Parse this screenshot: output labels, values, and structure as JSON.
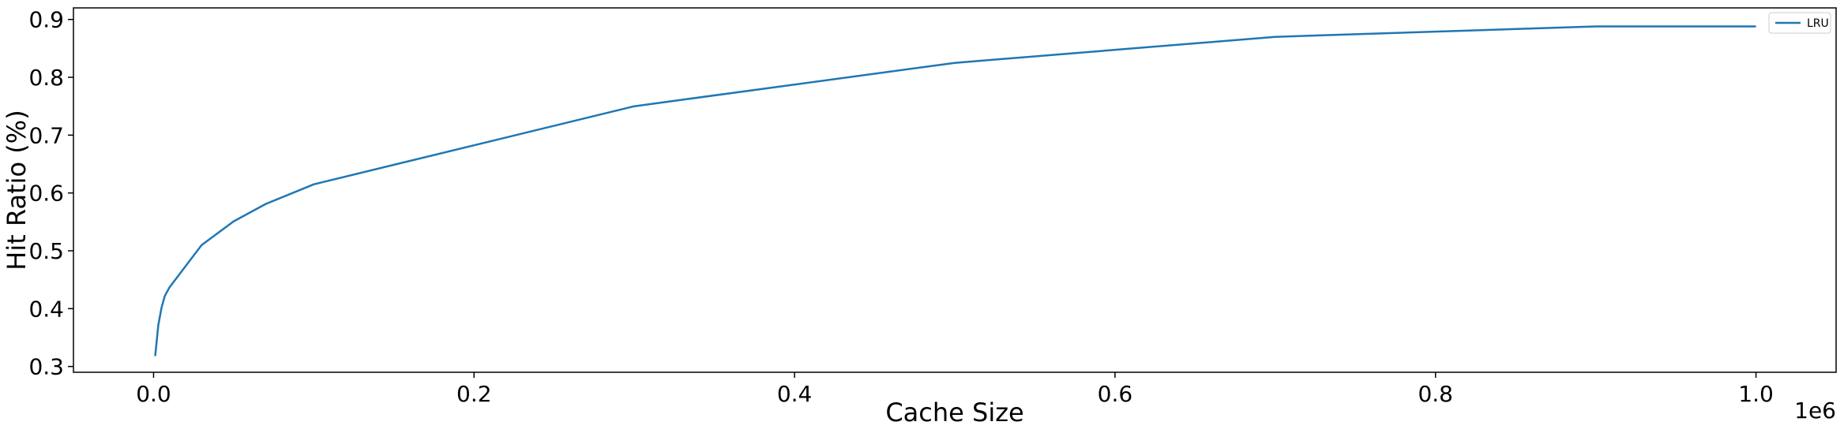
{
  "chart_data": {
    "type": "line",
    "title": "",
    "xlabel": "Cache Size",
    "ylabel": "Hit Ratio (%)",
    "x_offset_label": "1e6",
    "xlim": [
      -0.05,
      1.05
    ],
    "ylim": [
      0.29,
      0.92
    ],
    "x_ticks": [
      0.0,
      0.2,
      0.4,
      0.6,
      0.8,
      1.0
    ],
    "x_tick_labels": [
      "0.0",
      "0.2",
      "0.4",
      "0.6",
      "0.8",
      "1.0"
    ],
    "y_ticks": [
      0.3,
      0.4,
      0.5,
      0.6,
      0.7,
      0.8,
      0.9
    ],
    "y_tick_labels": [
      "0.3",
      "0.4",
      "0.5",
      "0.6",
      "0.7",
      "0.8",
      "0.9"
    ],
    "grid": false,
    "legend_position": "top-right",
    "series": [
      {
        "name": "LRU",
        "color": "#1f77b4",
        "x": [
          0.001,
          0.003,
          0.005,
          0.007,
          0.01,
          0.03,
          0.05,
          0.07,
          0.1,
          0.3,
          0.5,
          0.7,
          0.9,
          1.0
        ],
        "values": [
          0.318,
          0.372,
          0.402,
          0.422,
          0.437,
          0.51,
          0.551,
          0.581,
          0.615,
          0.75,
          0.825,
          0.87,
          0.888,
          0.888
        ]
      }
    ]
  }
}
